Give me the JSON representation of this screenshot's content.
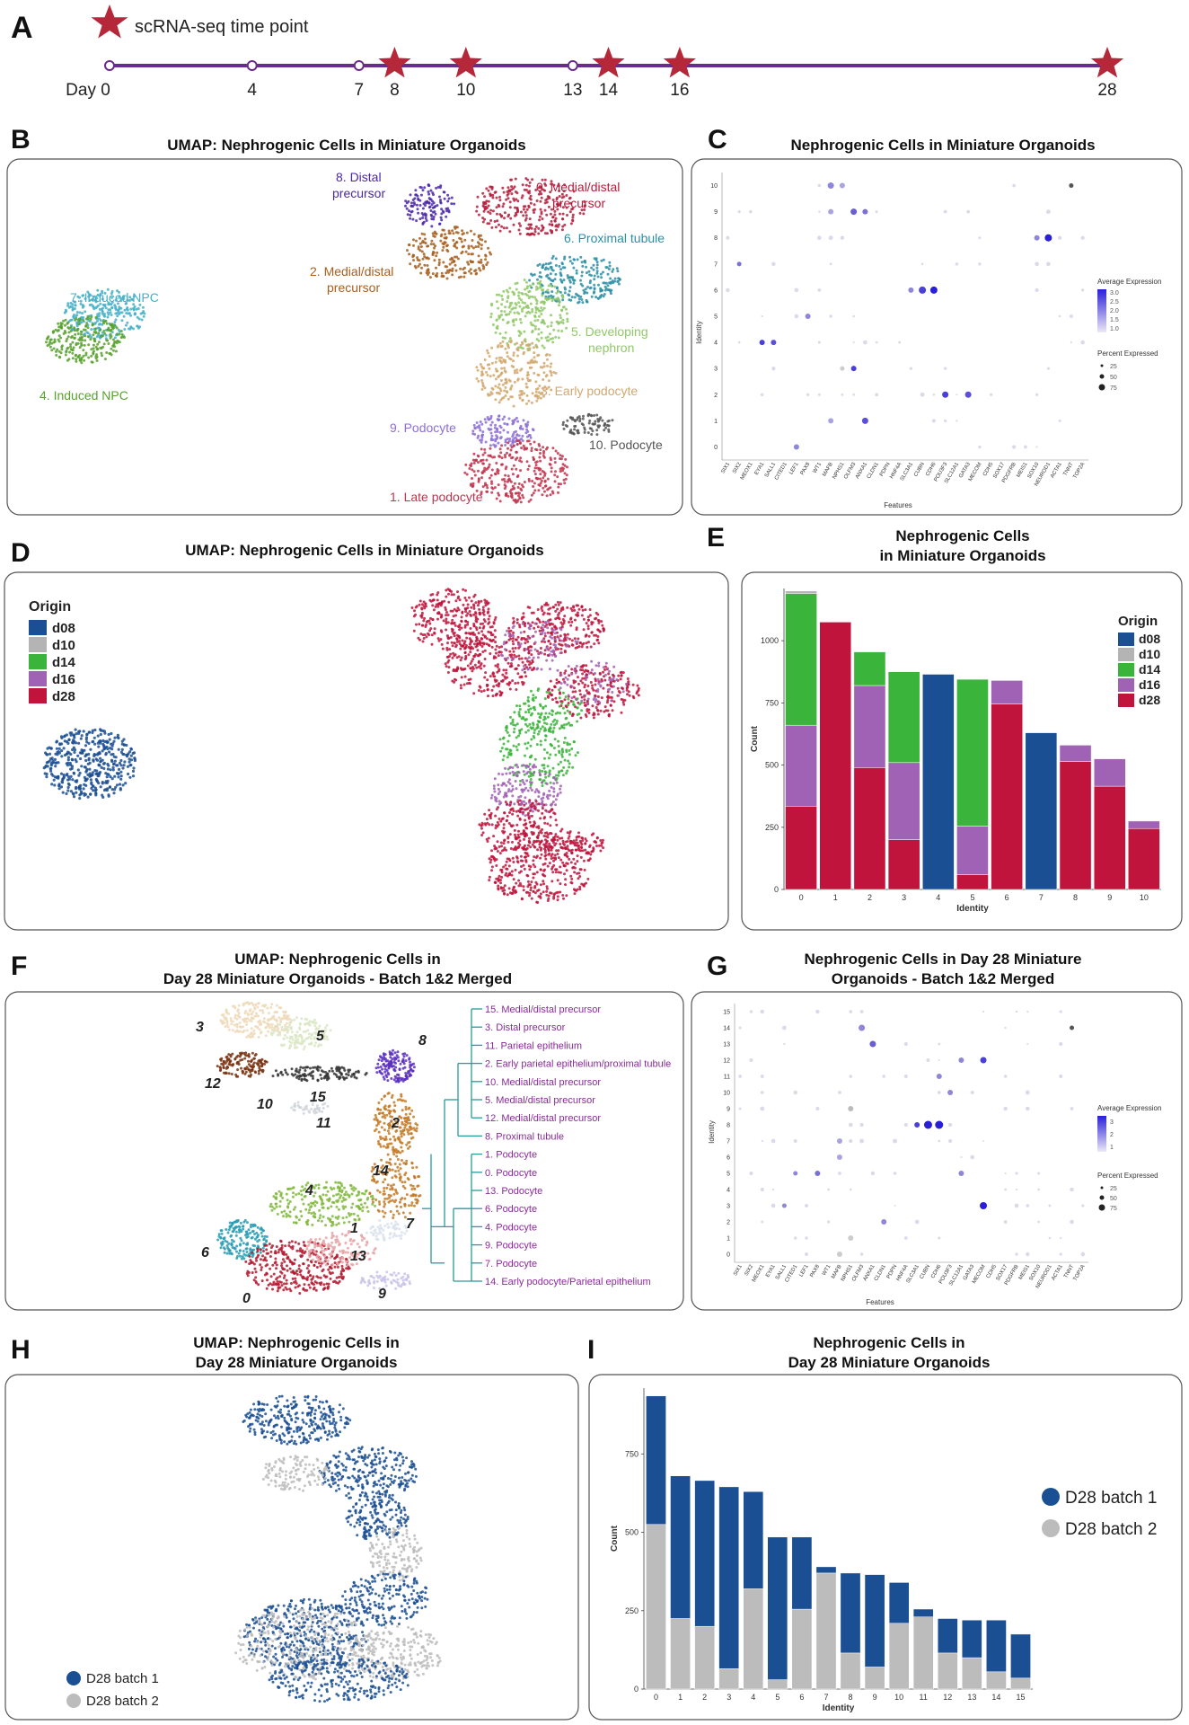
{
  "panels": {
    "A": {
      "letter": "A",
      "legend_text": "scRNA-seq time point",
      "day_label": "Day 0",
      "ticks": [
        "4",
        "7",
        "8",
        "10",
        "13",
        "14",
        "16",
        "28"
      ],
      "days": [
        0,
        4,
        7,
        8,
        10,
        13,
        14,
        16,
        28
      ],
      "starred_days": [
        8,
        10,
        14,
        16,
        28
      ],
      "star_color": "#b5283a",
      "line_color": "#6a2c8a"
    },
    "B": {
      "letter": "B",
      "title": "UMAP: Nephrogenic Cells in Miniature Organoids",
      "clusters": [
        {
          "label1": "8. Distal",
          "label2": "precursor",
          "color": "#4b28a8"
        },
        {
          "label1": "0. Medial/distal",
          "label2": "precursor",
          "color": "#b41f3c"
        },
        {
          "label1": "6. Proximal tubule",
          "label2": "",
          "color": "#2a8fa5"
        },
        {
          "label1": "2. Medial/distal",
          "label2": "precursor",
          "color": "#a85f1e"
        },
        {
          "label1": "7. Induced NPC",
          "label2": "",
          "color": "#45b0c8"
        },
        {
          "label1": "5. Developing",
          "label2": "nephron",
          "color": "#90c967"
        },
        {
          "label1": "4. Induced NPC",
          "label2": "",
          "color": "#58a12e"
        },
        {
          "label1": "3. Early podocyte",
          "label2": "",
          "color": "#d2a86f"
        },
        {
          "label1": "9. Podocyte",
          "label2": "",
          "color": "#8c6fd4"
        },
        {
          "label1": "10. Podocyte",
          "label2": "",
          "color": "#555555"
        },
        {
          "label1": "1. Late podocyte",
          "label2": "",
          "color": "#c2334c"
        }
      ]
    },
    "C": {
      "letter": "C",
      "title": "Nephrogenic Cells in Miniature Organoids",
      "ylabel": "Identity",
      "xlabel": "Features",
      "identities": [
        "10",
        "9",
        "8",
        "7",
        "6",
        "5",
        "4",
        "3",
        "2",
        "1",
        "0"
      ],
      "genes": [
        "SIX1",
        "SIX2",
        "MEOX1",
        "EYA1",
        "SALL1",
        "CITED1",
        "LEF1",
        "PAX8",
        "WT1",
        "MAFB",
        "NPHS1",
        "OLFM3",
        "ANXA1",
        "CLDN1",
        "PDPN",
        "HNF4A",
        "SLC3A1",
        "CUBN",
        "CDH6",
        "POU3F3",
        "SLC12A1",
        "GATA3",
        "MECOM",
        "CDH5",
        "SOX17",
        "PDGFRB",
        "MEIS1",
        "SOX10",
        "NEUROD1",
        "ACTA1",
        "TNNT",
        "TOP2A"
      ],
      "legend_title1": "Average Expression",
      "legend_ticks1": [
        "3.0",
        "2.5",
        "2.0",
        "1.5",
        "1.0"
      ],
      "legend_title2": "Percent Expressed",
      "legend_ticks2": [
        "25",
        "50",
        "75"
      ]
    },
    "D": {
      "letter": "D",
      "title": "UMAP: Nephrogenic Cells in Miniature Organoids",
      "legend_title": "Origin",
      "legend_items": [
        "d08",
        "d10",
        "d14",
        "d16",
        "d28"
      ],
      "colors": [
        "#1b4f93",
        "#b4b4b4",
        "#3bb43b",
        "#a062b4",
        "#c0143c"
      ]
    },
    "E": {
      "letter": "E",
      "title1": "Nephrogenic Cells",
      "title2": "in Miniature Organoids"
    },
    "F": {
      "letter": "F",
      "title1": "UMAP: Nephrogenic Cells in",
      "title2": "Day 28 Miniature Organoids - Batch 1&2 Merged",
      "clusters": [
        "0",
        "1",
        "2",
        "3",
        "4",
        "5",
        "6",
        "7",
        "8",
        "9",
        "10",
        "11",
        "12",
        "13",
        "14",
        "15"
      ],
      "tree_labels": [
        "15. Medial/distal precursor",
        "3. Distal precursor",
        "11. Parietal epithelium",
        "2. Early parietal epithelium/proximal tubule",
        "10. Medial/distal precursor",
        "5. Medial/distal precursor",
        "12. Medial/distal precursor",
        "8. Proximal tubule",
        "1. Podocyte",
        "0. Podocyte",
        "13. Podocyte",
        "6. Podocyte",
        "4. Podocyte",
        "9. Podocyte",
        "7. Podocyte",
        "14. Early podocyte/Parietal epithelium"
      ]
    },
    "G": {
      "letter": "G",
      "title1": "Nephrogenic Cells in Day 28 Miniature",
      "title2": "Organoids - Batch 1&2 Merged",
      "ylabel": "Identity",
      "xlabel": "Features",
      "identities": [
        "15",
        "14",
        "13",
        "12",
        "11",
        "10",
        "9",
        "8",
        "7",
        "6",
        "5",
        "4",
        "3",
        "2",
        "1",
        "0"
      ],
      "legend_title1": "Average Expression",
      "legend_ticks1": [
        "3",
        "2",
        "1"
      ],
      "legend_title2": "Percent Expressed",
      "legend_ticks2": [
        "25",
        "50",
        "75"
      ]
    },
    "H": {
      "letter": "H",
      "title1": "UMAP: Nephrogenic Cells in",
      "title2": "Day 28 Miniature Organoids",
      "legend_items": [
        "D28 batch 1",
        "D28 batch 2"
      ],
      "colors": [
        "#1b4f93",
        "#bcbcbc"
      ]
    },
    "I": {
      "letter": "I",
      "title1": "Nephrogenic Cells in",
      "title2": "Day 28 Miniature Organoids",
      "legend_items": [
        "D28 batch 1",
        "D28 batch 2"
      ],
      "colors": [
        "#1b4f93",
        "#bcbcbc"
      ]
    }
  },
  "chart_data": [
    {
      "type": "bar",
      "panel": "E",
      "stacked": true,
      "categories": [
        "0",
        "1",
        "2",
        "3",
        "4",
        "5",
        "6",
        "7",
        "8",
        "9",
        "10"
      ],
      "series": [
        {
          "name": "d28",
          "color": "#c0143c",
          "values": [
            335,
            1075,
            490,
            200,
            0,
            60,
            745,
            0,
            515,
            415,
            245
          ]
        },
        {
          "name": "d16",
          "color": "#a062b4",
          "values": [
            325,
            0,
            330,
            310,
            0,
            195,
            95,
            0,
            65,
            110,
            30
          ]
        },
        {
          "name": "d14",
          "color": "#3bb43b",
          "values": [
            530,
            0,
            135,
            365,
            0,
            590,
            0,
            0,
            0,
            0,
            0
          ]
        },
        {
          "name": "d10",
          "color": "#b4b4b4",
          "values": [
            10,
            0,
            0,
            0,
            0,
            0,
            0,
            0,
            0,
            0,
            0
          ]
        },
        {
          "name": "d08",
          "color": "#1b4f93",
          "values": [
            0,
            0,
            0,
            0,
            865,
            0,
            0,
            630,
            0,
            0,
            0
          ]
        }
      ],
      "xlabel": "Identity",
      "ylabel": "Count",
      "yticks": [
        0,
        250,
        500,
        750,
        1000
      ],
      "ylim": [
        0,
        1210
      ],
      "legend_title": "Origin",
      "legend_order": [
        "d08",
        "d10",
        "d14",
        "d16",
        "d28"
      ]
    },
    {
      "type": "bar",
      "panel": "I",
      "stacked": true,
      "categories": [
        "0",
        "1",
        "2",
        "3",
        "4",
        "5",
        "6",
        "7",
        "8",
        "9",
        "10",
        "11",
        "12",
        "13",
        "14",
        "15"
      ],
      "series": [
        {
          "name": "D28 batch 2",
          "color": "#bcbcbc",
          "values": [
            525,
            225,
            200,
            65,
            320,
            30,
            255,
            370,
            115,
            70,
            210,
            230,
            115,
            100,
            55,
            35
          ]
        },
        {
          "name": "D28 batch 1",
          "color": "#1b4f93",
          "values": [
            410,
            455,
            465,
            580,
            310,
            455,
            230,
            20,
            255,
            295,
            130,
            25,
            110,
            120,
            165,
            140
          ]
        }
      ],
      "xlabel": "Identity",
      "ylabel": "Count",
      "yticks": [
        0,
        250,
        500,
        750
      ],
      "ylim": [
        0,
        960
      ],
      "legend_order": [
        "D28 batch 1",
        "D28 batch 2"
      ]
    }
  ]
}
